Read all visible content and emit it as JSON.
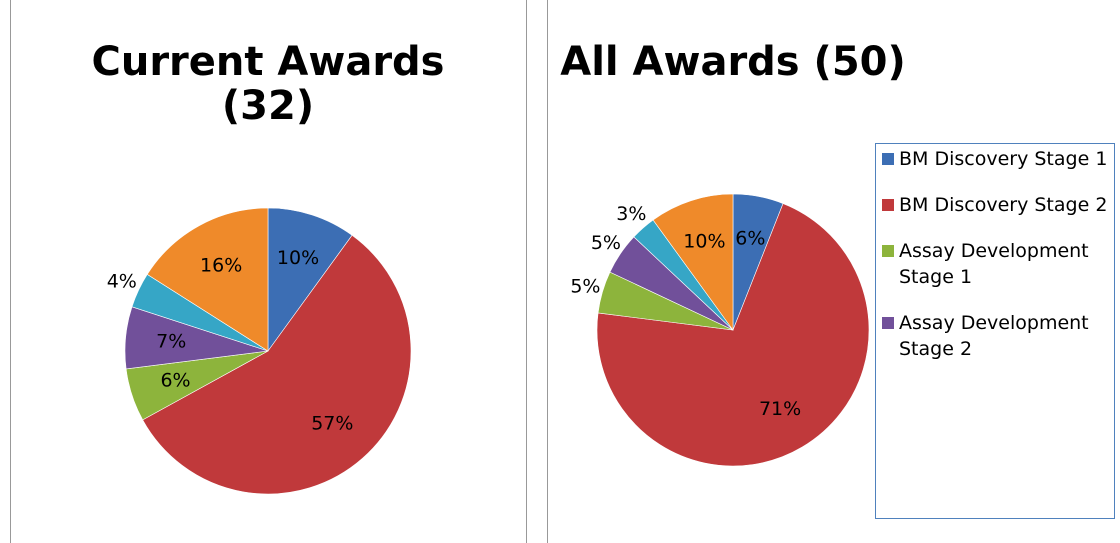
{
  "chart_data": [
    {
      "type": "pie",
      "title": "Current Awards (32)",
      "values": [
        10,
        57,
        6,
        7,
        4,
        16
      ],
      "value_labels": [
        "10%",
        "57%",
        "6%",
        "7%",
        "4%",
        "16%"
      ],
      "colors": [
        "#3c6eb4",
        "#c0393b",
        "#8db43c",
        "#71509a",
        "#36a6c6",
        "#ef8a2a"
      ]
    },
    {
      "type": "pie",
      "title": "All Awards (50)",
      "categories": [
        "BM Discovery Stage 1",
        "BM Discovery Stage 2",
        "Assay Development Stage 1",
        "Assay Development Stage 2",
        null,
        null
      ],
      "values": [
        6,
        71,
        5,
        5,
        3,
        10
      ],
      "value_labels": [
        "6%",
        "71%",
        "5%",
        "5%",
        "3%",
        "10%"
      ],
      "colors": [
        "#3c6eb4",
        "#c0393b",
        "#8db43c",
        "#71509a",
        "#36a6c6",
        "#ef8a2a"
      ],
      "legend": "right"
    }
  ]
}
